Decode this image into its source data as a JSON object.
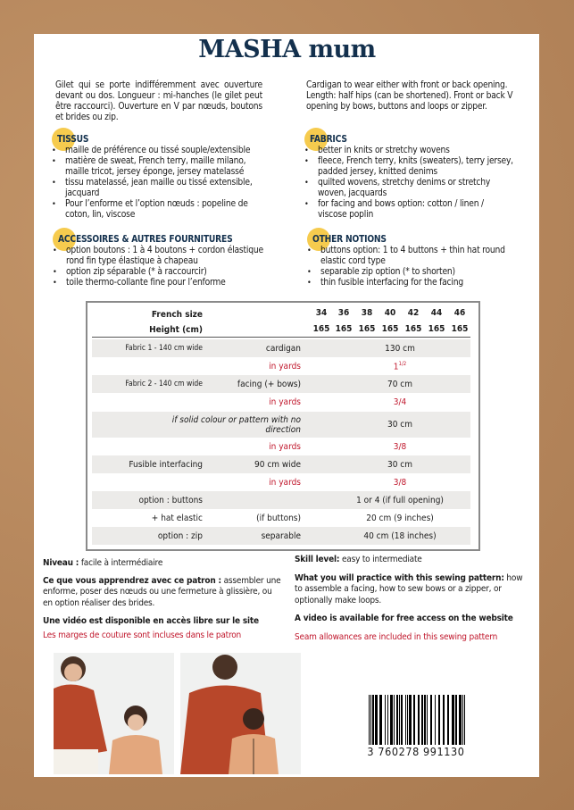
{
  "title": "MASHA mum",
  "intro": {
    "fr": "Gilet qui se porte indifféremment avec ouverture devant ou dos. Longueur : mi-hanches (le gilet peut être raccourci). Ouverture en V par nœuds, boutons et brides ou zip.",
    "en": "Cardigan to wear either with front or back opening. Length: half hips (can be shortened). Front or back V opening by bows, buttons and loops or zipper."
  },
  "tissus": {
    "heading": "TISSUS",
    "items": [
      "maille de préférence ou tissé souple/extensible",
      "matière de sweat, French terry, maille milano, maille tricot, jersey éponge, jersey matelassé",
      "tissu matelassé, jean maille ou tissé extensible, jacquard",
      "Pour l’enforme et l’option nœuds : popeline de coton, lin, viscose"
    ]
  },
  "fabrics": {
    "heading": "FABRICS",
    "items": [
      "better in knits or stretchy wovens",
      "fleece, French terry, knits (sweaters), terry jersey, padded jersey, knitted denims",
      "quilted wovens, stretchy denims or stretchy woven, jacquards",
      "for facing and bows option: cotton / linen / viscose poplin"
    ]
  },
  "accessoires": {
    "heading": "ACCESSOIRES & AUTRES FOURNITURES",
    "items": [
      "option boutons : 1 à 4 boutons + cordon élastique rond fin type élastique à chapeau",
      "option zip séparable (* à raccourcir)",
      "toile thermo-collante fine pour l’enforme"
    ]
  },
  "notions": {
    "heading": "OTHER NOTIONS",
    "items": [
      "buttons option: 1 to 4 buttons + thin hat round elastic cord type",
      "separable zip option (* to shorten)",
      "thin fusible interfacing for the facing"
    ]
  },
  "table": {
    "size_label": "French size",
    "height_label": "Height (cm)",
    "sizes": [
      "34",
      "36",
      "38",
      "40",
      "42",
      "44",
      "46"
    ],
    "heights": [
      "165",
      "165",
      "165",
      "165",
      "165",
      "165",
      "165"
    ],
    "rows": [
      {
        "c1": "Fabric 1 - 140 cm wide",
        "c2": "cardigan",
        "value": "130 cm"
      },
      {
        "c1": "",
        "c2": "in yards",
        "value": "1",
        "sup": "1/2"
      },
      {
        "c1": "Fabric 2 - 140 cm wide",
        "c2": "facing (+ bows)",
        "value": "70 cm"
      },
      {
        "c1": "",
        "c2": "in yards",
        "value": "3/4"
      },
      {
        "c1": "",
        "c2": "if solid colour or pattern with no direction",
        "value": "30 cm"
      },
      {
        "c1": "",
        "c2": "in yards",
        "value": "3/8"
      },
      {
        "c1": "Fusible interfacing",
        "c2": "90 cm wide",
        "value": "30 cm"
      },
      {
        "c1": "",
        "c2": "in yards",
        "value": "3/8"
      },
      {
        "c1": "option : buttons",
        "c2": "",
        "value": "1 or 4 (if full opening)"
      },
      {
        "c1": "+ hat elastic",
        "c2": "(if buttons)",
        "value": "20 cm (9 inches)"
      },
      {
        "c1": "option : zip",
        "c2": "separable",
        "value": "40 cm (18 inches)"
      }
    ]
  },
  "bottom": {
    "fr": {
      "level_label": "Niveau :",
      "level": " facile à intermédiaire",
      "learn_label": "Ce que vous apprendrez avec ce patron :",
      "learn": " assembler une enforme, poser des nœuds ou une fermeture à glissière, ou en option réaliser des brides.",
      "video": "Une vidéo est disponible en accès libre sur le site",
      "seam": "Les marges de couture sont incluses dans le patron"
    },
    "en": {
      "level_label": "Skill level:",
      "level": " easy to intermediate",
      "learn_label": "What you will practice with this sewing pattern:",
      "learn": " how to assemble a facing, how to sew bows or a zipper, or optionally make loops.",
      "video": "A video is available for free access on the website",
      "seam": "Seam allowances are included in this sewing pattern"
    }
  },
  "barcode": "3 760278 991130",
  "colors": {
    "title": "#13304d",
    "accent": "#f6cb4e",
    "red": "#c0172c",
    "background": "#b8895c"
  }
}
